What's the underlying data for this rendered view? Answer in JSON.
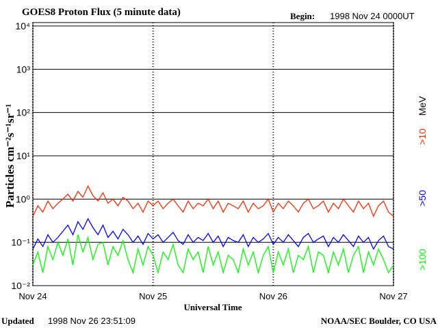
{
  "chart_data": {
    "type": "line",
    "title": "GOES8 Proton Flux (5 minute data)",
    "begin_label": "Begin:",
    "begin": "1998 Nov 24 0000UT",
    "updated_label": "Updated",
    "updated": "1998 Nov 26 23:51:09",
    "credit": "NOAA/SEC Boulder, CO USA",
    "x_label": "Universal Time",
    "y_label": "Particles cm⁻²s⁻¹sr⁻¹",
    "legend_unit": "MeV",
    "log_y": true,
    "grid": true,
    "xlim": [
      0,
      72
    ],
    "xticks": [
      {
        "value": 0,
        "label": "Nov 24"
      },
      {
        "value": 24,
        "label": "Nov 25"
      },
      {
        "value": 48,
        "label": "Nov 26"
      },
      {
        "value": 72,
        "label": "Nov 27"
      }
    ],
    "ylim": [
      0.01,
      10000
    ],
    "yticks": [
      {
        "value": 0.01,
        "label": "10⁻²"
      },
      {
        "value": 0.1,
        "label": "10⁻¹"
      },
      {
        "value": 1,
        "label": "10⁰"
      },
      {
        "value": 10,
        "label": "10¹"
      },
      {
        "value": 100,
        "label": "10²"
      },
      {
        "value": 1000,
        "label": "10³"
      },
      {
        "value": 10000,
        "label": "10⁴"
      }
    ],
    "x": [
      0,
      1,
      2,
      3,
      4,
      5,
      6,
      7,
      8,
      9,
      10,
      11,
      12,
      13,
      14,
      15,
      16,
      17,
      18,
      19,
      20,
      21,
      22,
      23,
      24,
      25,
      26,
      27,
      28,
      29,
      30,
      31,
      32,
      33,
      34,
      35,
      36,
      37,
      38,
      39,
      40,
      41,
      42,
      43,
      44,
      45,
      46,
      47,
      48,
      49,
      50,
      51,
      52,
      53,
      54,
      55,
      56,
      57,
      58,
      59,
      60,
      61,
      62,
      63,
      64,
      65,
      66,
      67,
      68,
      69,
      70,
      71,
      72
    ],
    "series": [
      {
        "name": ">10",
        "color": "#ff2a00",
        "values": [
          0.4,
          0.7,
          0.5,
          0.9,
          0.6,
          0.8,
          1.0,
          1.3,
          0.9,
          1.5,
          1.1,
          2.0,
          1.2,
          0.9,
          1.4,
          0.8,
          1.0,
          0.7,
          1.1,
          0.9,
          0.6,
          0.8,
          0.5,
          0.9,
          0.7,
          0.9,
          0.6,
          0.8,
          1.0,
          0.7,
          0.5,
          0.9,
          0.6,
          0.8,
          0.7,
          1.0,
          0.6,
          0.9,
          0.5,
          0.8,
          0.7,
          0.6,
          0.9,
          0.5,
          0.8,
          0.6,
          0.7,
          1.0,
          0.5,
          0.8,
          0.6,
          0.9,
          0.7,
          0.5,
          0.8,
          1.0,
          0.6,
          0.7,
          0.9,
          0.5,
          0.8,
          0.6,
          1.0,
          0.7,
          0.5,
          0.9,
          0.6,
          0.8,
          0.4,
          0.7,
          0.9,
          0.5,
          0.4
        ]
      },
      {
        "name": ">50",
        "color": "#0000ff",
        "values": [
          0.07,
          0.12,
          0.08,
          0.15,
          0.1,
          0.13,
          0.18,
          0.25,
          0.15,
          0.3,
          0.2,
          0.35,
          0.22,
          0.15,
          0.25,
          0.13,
          0.18,
          0.12,
          0.2,
          0.15,
          0.1,
          0.14,
          0.09,
          0.16,
          0.12,
          0.15,
          0.1,
          0.13,
          0.17,
          0.11,
          0.09,
          0.15,
          0.1,
          0.13,
          0.11,
          0.16,
          0.1,
          0.14,
          0.08,
          0.13,
          0.11,
          0.1,
          0.15,
          0.08,
          0.13,
          0.1,
          0.12,
          0.16,
          0.09,
          0.13,
          0.1,
          0.15,
          0.11,
          0.08,
          0.13,
          0.16,
          0.1,
          0.12,
          0.14,
          0.08,
          0.13,
          0.1,
          0.15,
          0.11,
          0.08,
          0.14,
          0.1,
          0.13,
          0.07,
          0.11,
          0.14,
          0.08,
          0.07
        ]
      },
      {
        "name": ">100",
        "color": "#00ff00",
        "values": [
          0.03,
          0.06,
          0.02,
          0.08,
          0.04,
          0.1,
          0.05,
          0.12,
          0.03,
          0.15,
          0.06,
          0.13,
          0.04,
          0.09,
          0.1,
          0.03,
          0.08,
          0.05,
          0.11,
          0.04,
          0.02,
          0.07,
          0.03,
          0.08,
          0.05,
          0.02,
          0.06,
          0.04,
          0.09,
          0.03,
          0.02,
          0.07,
          0.04,
          0.06,
          0.02,
          0.08,
          0.03,
          0.06,
          0.02,
          0.05,
          0.04,
          0.02,
          0.07,
          0.03,
          0.06,
          0.02,
          0.05,
          0.08,
          0.02,
          0.06,
          0.03,
          0.07,
          0.02,
          0.05,
          0.04,
          0.08,
          0.02,
          0.06,
          0.05,
          0.02,
          0.06,
          0.03,
          0.07,
          0.02,
          0.05,
          0.08,
          0.02,
          0.06,
          0.03,
          0.07,
          0.04,
          0.02,
          0.03
        ]
      }
    ]
  }
}
